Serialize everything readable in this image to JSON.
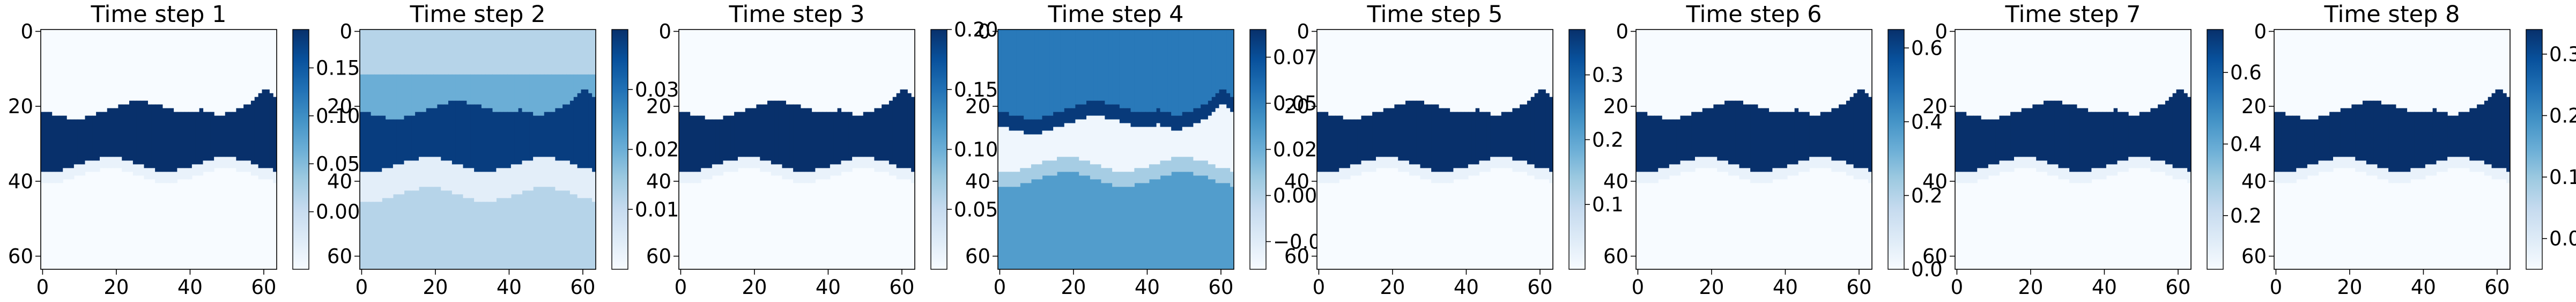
{
  "colormap": {
    "name": "Blues",
    "light": "#f7fbff",
    "dark": "#08306b"
  },
  "chart_data": [
    {
      "type": "heatmap",
      "title": "Time step 1",
      "pattern": "band",
      "xlim": [
        0,
        63
      ],
      "ylim": [
        0,
        63
      ],
      "xticks": [
        "0",
        "20",
        "40",
        "60"
      ],
      "yticks": [
        "0",
        "20",
        "40",
        "60"
      ],
      "color_range": [
        -0.06,
        0.19
      ],
      "background": -0.06,
      "band_value": 0.19,
      "below_value": -0.06,
      "colorbar_ticks": [
        {
          "v": 0.15,
          "label": "0.15"
        },
        {
          "v": 0.1,
          "label": "0.10"
        },
        {
          "v": 0.05,
          "label": "0.05"
        },
        {
          "v": 0.0,
          "label": "0.00"
        }
      ]
    },
    {
      "type": "heatmap",
      "title": "Time step 2",
      "pattern": "smooth",
      "xlim": [
        0,
        63
      ],
      "ylim": [
        0,
        63
      ],
      "xticks": [
        "0",
        "20",
        "40",
        "60"
      ],
      "yticks": [
        "0",
        "20",
        "40",
        "60"
      ],
      "color_range": [
        0.0,
        0.04
      ],
      "background": 0.012,
      "band_value": 0.038,
      "below_value": 0.004,
      "colorbar_ticks": [
        {
          "v": 0.03,
          "label": "0.03"
        },
        {
          "v": 0.02,
          "label": "0.02"
        },
        {
          "v": 0.01,
          "label": "0.01"
        }
      ]
    },
    {
      "type": "heatmap",
      "title": "Time step 3",
      "pattern": "band",
      "xlim": [
        0,
        63
      ],
      "ylim": [
        0,
        63
      ],
      "xticks": [
        "0",
        "20",
        "40",
        "60"
      ],
      "yticks": [
        "0",
        "20",
        "40",
        "60"
      ],
      "color_range": [
        0.0,
        0.2
      ],
      "background": 0.0,
      "band_value": 0.2,
      "below_value": 0.0,
      "colorbar_ticks": [
        {
          "v": 0.2,
          "label": "0.20"
        },
        {
          "v": 0.15,
          "label": "0.15"
        },
        {
          "v": 0.1,
          "label": "0.10"
        },
        {
          "v": 0.05,
          "label": "0.05"
        }
      ]
    },
    {
      "type": "heatmap",
      "title": "Time step 4",
      "pattern": "inverse",
      "xlim": [
        0,
        63
      ],
      "ylim": [
        0,
        63
      ],
      "xticks": [
        "0",
        "20",
        "40",
        "60"
      ],
      "yticks": [
        "0",
        "20",
        "40",
        "60"
      ],
      "color_range": [
        -0.04,
        0.09
      ],
      "background": 0.035,
      "band_value": 0.085,
      "below_value": -0.035,
      "colorbar_ticks": [
        {
          "v": 0.075,
          "label": "0.075"
        },
        {
          "v": 0.05,
          "label": "0.050"
        },
        {
          "v": 0.025,
          "label": "0.025"
        },
        {
          "v": 0.0,
          "label": "0.000"
        },
        {
          "v": -0.025,
          "label": "−0.025"
        }
      ]
    },
    {
      "type": "heatmap",
      "title": "Time step 5",
      "pattern": "band",
      "xlim": [
        0,
        63
      ],
      "ylim": [
        0,
        63
      ],
      "xticks": [
        "0",
        "20",
        "40",
        "60"
      ],
      "yticks": [
        "0",
        "20",
        "40",
        "60"
      ],
      "color_range": [
        0.0,
        0.37
      ],
      "background": 0.0,
      "band_value": 0.37,
      "below_value": 0.0,
      "colorbar_ticks": [
        {
          "v": 0.3,
          "label": "0.3"
        },
        {
          "v": 0.2,
          "label": "0.2"
        },
        {
          "v": 0.1,
          "label": "0.1"
        }
      ]
    },
    {
      "type": "heatmap",
      "title": "Time step 6",
      "pattern": "band",
      "xlim": [
        0,
        63
      ],
      "ylim": [
        0,
        63
      ],
      "xticks": [
        "0",
        "20",
        "40",
        "60"
      ],
      "yticks": [
        "0",
        "20",
        "40",
        "60"
      ],
      "color_range": [
        0.0,
        0.65
      ],
      "background": 0.0,
      "band_value": 0.65,
      "below_value": 0.0,
      "colorbar_ticks": [
        {
          "v": 0.6,
          "label": "0.6"
        },
        {
          "v": 0.4,
          "label": "0.4"
        },
        {
          "v": 0.2,
          "label": "0.2"
        },
        {
          "v": 0.0,
          "label": "0.0"
        }
      ]
    },
    {
      "type": "heatmap",
      "title": "Time step 7",
      "pattern": "band",
      "xlim": [
        0,
        63
      ],
      "ylim": [
        0,
        63
      ],
      "xticks": [
        "0",
        "20",
        "40",
        "60"
      ],
      "yticks": [
        "0",
        "20",
        "40",
        "60"
      ],
      "color_range": [
        0.05,
        0.72
      ],
      "background": 0.05,
      "band_value": 0.72,
      "below_value": 0.05,
      "colorbar_ticks": [
        {
          "v": 0.6,
          "label": "0.6"
        },
        {
          "v": 0.4,
          "label": "0.4"
        },
        {
          "v": 0.2,
          "label": "0.2"
        }
      ]
    },
    {
      "type": "heatmap",
      "title": "Time step 8",
      "pattern": "band",
      "xlim": [
        0,
        63
      ],
      "ylim": [
        0,
        63
      ],
      "xticks": [
        "0",
        "20",
        "40",
        "60"
      ],
      "yticks": [
        "0",
        "20",
        "40",
        "60"
      ],
      "color_range": [
        -0.05,
        0.34
      ],
      "background": -0.05,
      "band_value": 0.34,
      "below_value": -0.05,
      "colorbar_ticks": [
        {
          "v": 0.3,
          "label": "0.3"
        },
        {
          "v": 0.2,
          "label": "0.2"
        },
        {
          "v": 0.1,
          "label": "0.1"
        },
        {
          "v": 0.0,
          "label": "0.0"
        }
      ]
    }
  ]
}
